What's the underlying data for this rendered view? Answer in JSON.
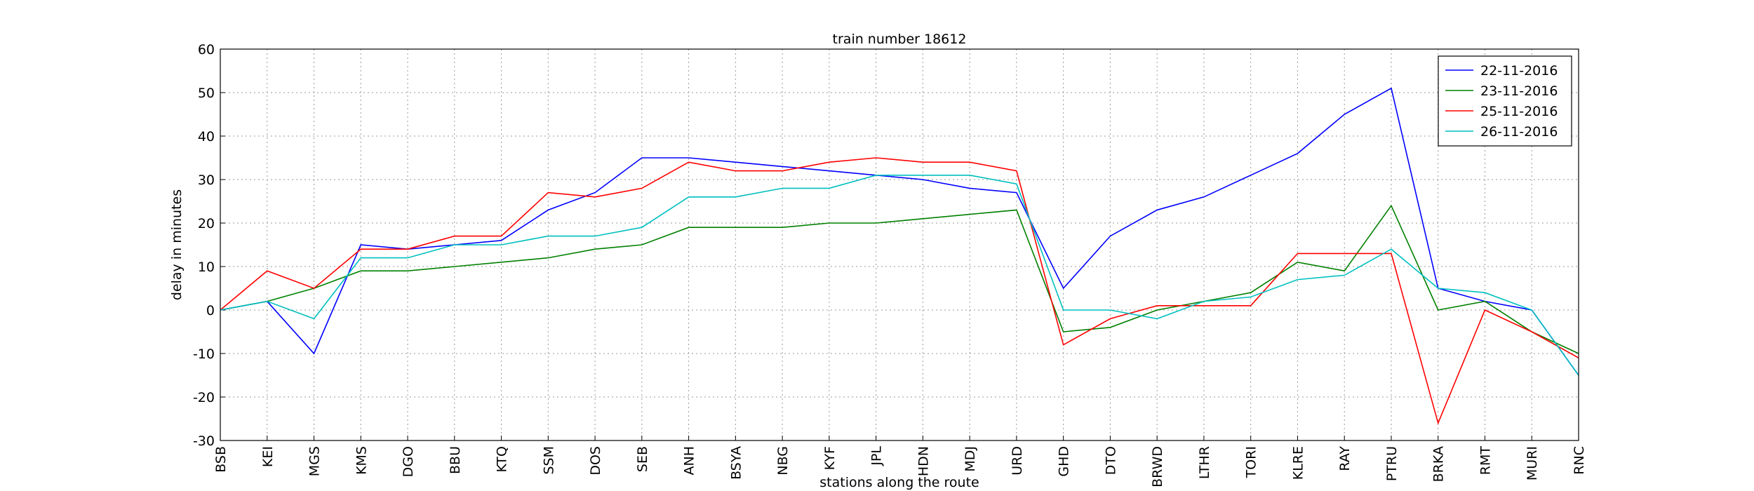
{
  "chart_data": {
    "type": "line",
    "title": "train number 18612",
    "x_label": "stations along the route",
    "y_label": "delay in minutes",
    "categories": [
      "BSB",
      "KEI",
      "MGS",
      "KMS",
      "DGO",
      "BBU",
      "KTQ",
      "SSM",
      "DOS",
      "SEB",
      "ANH",
      "BSYA",
      "NBG",
      "KYF",
      "JPL",
      "HDN",
      "MDJ",
      "URD",
      "GHD",
      "DTO",
      "BRWD",
      "LTHR",
      "TORI",
      "KLRE",
      "RAY",
      "PTRU",
      "BRKA",
      "RMT",
      "MURI",
      "RNC"
    ],
    "series": [
      {
        "name": "22-11-2016",
        "color": "#0000ff",
        "values": [
          0,
          2,
          -10,
          15,
          14,
          15,
          16,
          23,
          27,
          35,
          35,
          34,
          33,
          32,
          31,
          30,
          28,
          27,
          5,
          17,
          23,
          26,
          31,
          36,
          45,
          51,
          5,
          2,
          0,
          -15
        ]
      },
      {
        "name": "23-11-2016",
        "color": "#008000",
        "values": [
          0,
          2,
          5,
          9,
          9,
          10,
          11,
          12,
          14,
          15,
          19,
          19,
          19,
          20,
          20,
          21,
          22,
          23,
          -5,
          -4,
          0,
          2,
          4,
          11,
          9,
          24,
          0,
          2,
          -5,
          -10
        ]
      },
      {
        "name": "25-11-2016",
        "color": "#ff0000",
        "values": [
          0,
          9,
          5,
          14,
          14,
          17,
          17,
          27,
          26,
          28,
          34,
          32,
          32,
          34,
          35,
          34,
          34,
          32,
          -8,
          -2,
          1,
          1,
          1,
          13,
          13,
          13,
          -26,
          0,
          -5,
          -11
        ]
      },
      {
        "name": "26-11-2016",
        "color": "#00bfbf",
        "values": [
          0,
          2,
          -2,
          12,
          12,
          15,
          15,
          17,
          17,
          19,
          26,
          26,
          28,
          28,
          31,
          31,
          31,
          29,
          0,
          0,
          -2,
          2,
          3,
          7,
          8,
          14,
          5,
          4,
          0,
          -15
        ]
      }
    ],
    "ylim": [
      -30,
      60
    ],
    "yticks": [
      -30,
      -20,
      -10,
      0,
      10,
      20,
      30,
      40,
      50,
      60
    ],
    "grid": true,
    "legend": "upper right"
  }
}
